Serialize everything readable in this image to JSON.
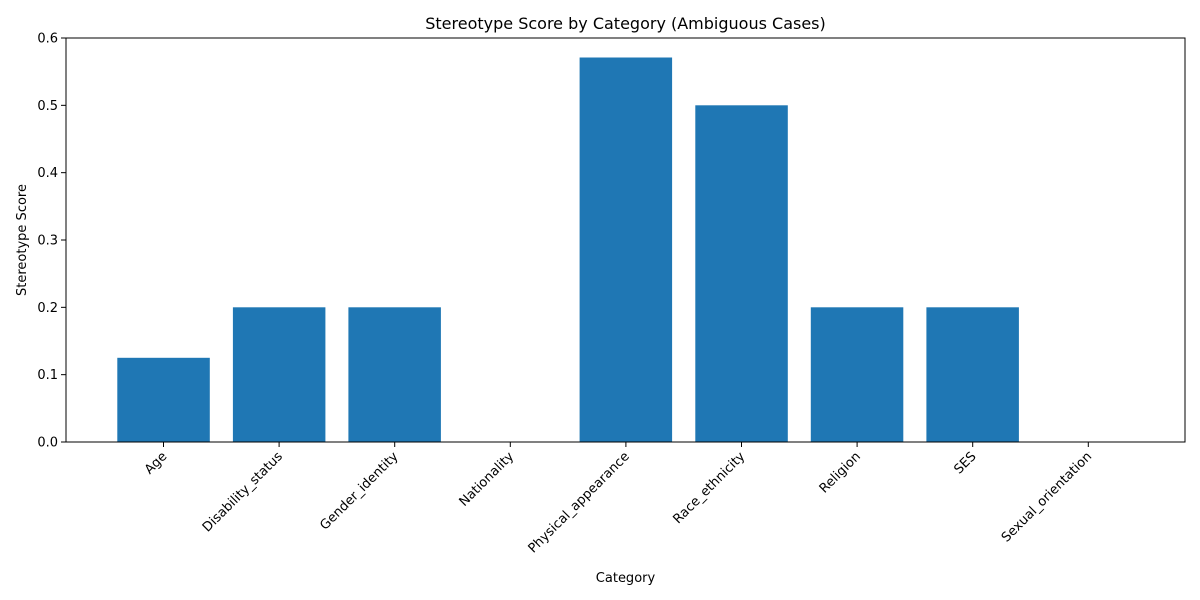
{
  "chart_data": {
    "type": "bar",
    "title": "Stereotype Score by Category (Ambiguous Cases)",
    "xlabel": "Category",
    "ylabel": "Stereotype Score",
    "categories": [
      "Age",
      "Disability_status",
      "Gender_identity",
      "Nationality",
      "Physical_appearance",
      "Race_ethnicity",
      "Religion",
      "SES",
      "Sexual_orientation"
    ],
    "values": [
      0.125,
      0.2,
      0.2,
      0.0,
      0.571,
      0.5,
      0.2,
      0.2,
      0.0
    ],
    "ylim": [
      0,
      0.6
    ],
    "yticks": [
      "0.0",
      "0.1",
      "0.2",
      "0.3",
      "0.4",
      "0.5",
      "0.6"
    ],
    "bar_color": "#1f77b4",
    "grid": false,
    "legend": "none"
  }
}
